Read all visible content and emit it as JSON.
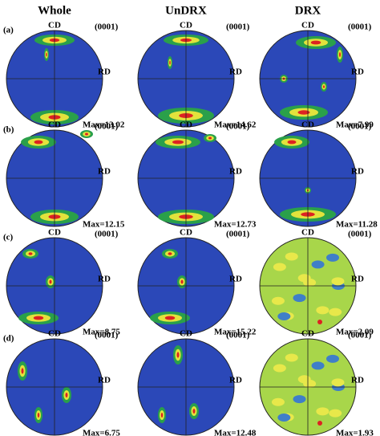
{
  "columns": [
    "Whole",
    "UnDRX",
    "DRX"
  ],
  "rows": [
    {
      "label": "(a)",
      "panels": [
        {
          "cd": "CD",
          "plane": "(0001)",
          "rd": "RD",
          "max": "Max=13.02"
        },
        {
          "cd": "CD",
          "plane": "(0001)",
          "rd": "RD",
          "max": "Max=14.62"
        },
        {
          "cd": "CD",
          "plane": "(0001)",
          "rd": "RD",
          "max": "Max=7.99"
        }
      ]
    },
    {
      "label": "(b)",
      "panels": [
        {
          "cd": "CD",
          "plane": "(0001)",
          "rd": "RD",
          "max": "Max=12.15"
        },
        {
          "cd": "CD",
          "plane": "(0001)",
          "rd": "RD",
          "max": "Max=12.73"
        },
        {
          "cd": "CD",
          "plane": "(0001)",
          "rd": "RD",
          "max": "Max=11.28"
        }
      ]
    },
    {
      "label": "(c)",
      "panels": [
        {
          "cd": "CD",
          "plane": "(0001)",
          "rd": "RD",
          "max": "Max=8.75"
        },
        {
          "cd": "CD",
          "plane": "(0001)",
          "rd": "RD",
          "max": "Max=15.22"
        },
        {
          "cd": "CD",
          "plane": "(0001)",
          "rd": "RD",
          "max": "Max=2.09"
        }
      ]
    },
    {
      "label": "(d)",
      "panels": [
        {
          "cd": "CD",
          "plane": "(0001)",
          "rd": "RD",
          "max": "Max=6.75"
        },
        {
          "cd": "CD",
          "plane": "(0001)",
          "rd": "RD",
          "max": "Max=12.48"
        },
        {
          "cd": "CD",
          "plane": "(0001)",
          "rd": "RD",
          "max": "Max=1.93"
        }
      ]
    }
  ]
}
